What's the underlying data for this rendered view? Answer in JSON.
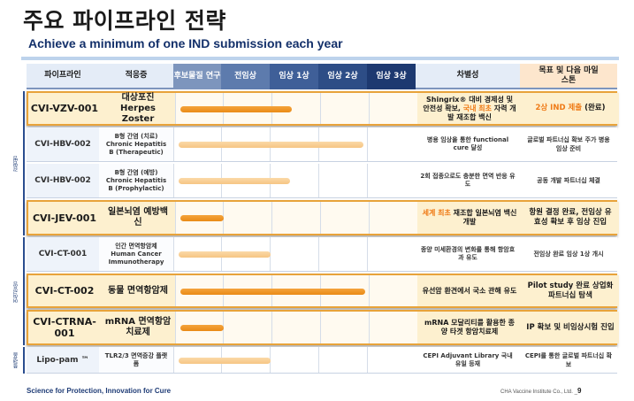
{
  "page": {
    "title": "주요 파이프라인 전략",
    "subtitle": "Achieve a minimum of one IND submission each year",
    "footer_left": "Science for Protection, Innovation for Cure",
    "footer_right": "CHA Vaccine Institute Co., Ltd. _",
    "page_number": "9"
  },
  "categories": [
    {
      "label": "감염병"
    },
    {
      "label": "면역항암"
    },
    {
      "label": "플랫폼"
    }
  ],
  "headers": {
    "pipeline": "파이프라인",
    "indication": "적응증",
    "discovery": "후보물질 연구",
    "preclinical": "전임상",
    "phase1": "임상 1상",
    "phase2": "임상 2상",
    "phase3": "임상 3상",
    "differentiation": "차별성",
    "goal": "목표 및 다음 마일스톤"
  },
  "colors": {
    "header_light": "#e4ecf7",
    "header_discovery": "#7d95bd",
    "header_preclinical": "#5d7bad",
    "header_phase1": "#3f5f98",
    "header_phase2": "#2d4d86",
    "header_phase3": "#1d3970",
    "header_goal": "#fde6cd",
    "highlight_border": "#e8a33a",
    "bar_strong": "#ee8f20",
    "bar_soft": "#f8cd95"
  },
  "rows": [
    {
      "name": "CVI-VZV-001",
      "indication": "대상포진 Herpes Zoster",
      "differentiation": {
        "pre": "Shingrix® 대비 경제성 및 안전성 확보, ",
        "accent": "국내 최초",
        "post": " 자력 개발 재조합 백신"
      },
      "goal": {
        "pre": "",
        "accent": "2상 IND 제출",
        "post": " (완료)"
      },
      "progress_stage": 2.4,
      "style": "strong",
      "highlight": true
    },
    {
      "name": "CVI-HBV-002",
      "indication": "B형 간염 (치료) Chronic Hepatitis B (Therapeutic)",
      "differentiation": {
        "pre": "병용 임상을 통한 functional cure 달성",
        "accent": "",
        "post": ""
      },
      "goal": {
        "pre": "글로벌 파트너십 확보 주가 병용 임상 준비",
        "accent": "",
        "post": ""
      },
      "progress_stage": 3.9,
      "style": "soft",
      "highlight": false
    },
    {
      "name": "CVI-HBV-002",
      "indication": "B형 간염 (예방) Chronic Hepatitis B (Prophylactic)",
      "differentiation": {
        "pre": "2회 접종으로도 충분한 면역 반응 유도",
        "accent": "",
        "post": ""
      },
      "goal": {
        "pre": "공동 개발 파트너십 체결",
        "accent": "",
        "post": ""
      },
      "progress_stage": 2.4,
      "style": "soft",
      "highlight": false
    },
    {
      "name": "CVI-JEV-001",
      "indication": "일본뇌염 예방백신",
      "differentiation": {
        "pre": "",
        "accent": "세계 최초",
        "post": " 재조합 일본뇌염 백신 개발"
      },
      "goal": {
        "pre": "항원 결정 완료, 전임상 유효성 확보 후 임상 진입",
        "accent": "",
        "post": ""
      },
      "progress_stage": 1.0,
      "style": "strong",
      "highlight": true
    },
    {
      "name": "CVI-CT-001",
      "indication": "인간 면역항암제 Human Cancer Immunotherapy",
      "differentiation": {
        "pre": "종양 미세환경의 변화를 통해 항암효과 유도",
        "accent": "",
        "post": ""
      },
      "goal": {
        "pre": "전임상 완료 임상 1상 개시",
        "accent": "",
        "post": ""
      },
      "progress_stage": 2.0,
      "style": "soft",
      "highlight": false
    },
    {
      "name": "CVI-CT-002",
      "indication": "동물 면역항암제",
      "differentiation": {
        "pre": "유선암 환견에서 국소 관해 유도",
        "accent": "",
        "post": ""
      },
      "goal": {
        "pre": "Pilot study 완료 상업화 파트너십 탐색",
        "accent": "",
        "post": ""
      },
      "progress_stage": 3.9,
      "style": "strong",
      "highlight": true
    },
    {
      "name": "CVI-CTRNA-001",
      "indication": "mRNA 면역항암치료제",
      "differentiation": {
        "pre": "mRNA 모달리티를 활용한 종양 타겟 항암치료제",
        "accent": "",
        "post": ""
      },
      "goal": {
        "pre": "IP 확보 및 비임상시험 진입",
        "accent": "",
        "post": ""
      },
      "progress_stage": 1.0,
      "style": "strong",
      "highlight": true
    },
    {
      "name": "Lipo-pam ™",
      "indication": "TLR2/3 면역증강 플랫폼",
      "differentiation": {
        "pre": "CEPI Adjuvant Library 국내 유일 등재",
        "accent": "",
        "post": ""
      },
      "goal": {
        "pre": "CEPI를 통한 글로벌 파트너십 확보",
        "accent": "",
        "post": ""
      },
      "progress_stage": 2.0,
      "style": "soft",
      "highlight": false
    }
  ]
}
